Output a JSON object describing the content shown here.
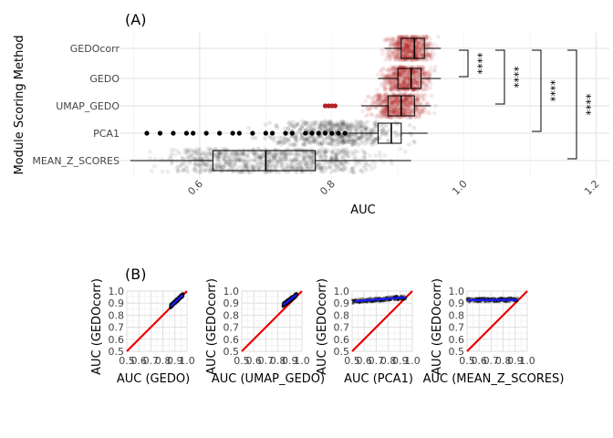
{
  "chart_data": [
    {
      "panel_label": "(A)",
      "type": "boxplot-jitter",
      "xlabel": "AUC",
      "ylabel": "Module Scoring Method",
      "xlim": [
        0.48,
        1.22
      ],
      "x_ticks": [
        0.6,
        0.8,
        1.0,
        1.2
      ],
      "x_tick_labels": [
        "0.6",
        "0.8",
        "1.0",
        "1.2"
      ],
      "categories": [
        "GEDOcorr",
        "GEDO",
        "UMAP_GEDO",
        "PCA1",
        "MEAN_Z_SCORES"
      ],
      "colors": {
        "GEDOcorr": "#b22222",
        "GEDO": "#b22222",
        "UMAP_GEDO": "#b22222",
        "PCA1": "#000000",
        "MEAN_Z_SCORES": "#000000"
      },
      "series": [
        {
          "name": "GEDOcorr",
          "min": 0.88,
          "q1": 0.905,
          "median": 0.925,
          "q3": 0.94,
          "max": 0.965,
          "spread_low": 0.87,
          "spread_high": 0.965,
          "outliers": []
        },
        {
          "name": "GEDO",
          "min": 0.87,
          "q1": 0.9,
          "median": 0.92,
          "q3": 0.935,
          "max": 0.965,
          "spread_low": 0.86,
          "spread_high": 0.965,
          "outliers": []
        },
        {
          "name": "UMAP_GEDO",
          "min": 0.845,
          "q1": 0.885,
          "median": 0.905,
          "q3": 0.925,
          "max": 0.95,
          "spread_low": 0.84,
          "spread_high": 0.96,
          "outliers": [
            0.79,
            0.795,
            0.8,
            0.805
          ]
        },
        {
          "name": "PCA1",
          "min": 0.825,
          "q1": 0.87,
          "median": 0.89,
          "q3": 0.905,
          "max": 0.945,
          "spread_low": 0.66,
          "spread_high": 0.95,
          "outliers": [
            0.52,
            0.54,
            0.56,
            0.58,
            0.59,
            0.61,
            0.63,
            0.65,
            0.66,
            0.68,
            0.7,
            0.71,
            0.73,
            0.74,
            0.76,
            0.77,
            0.78,
            0.79,
            0.8,
            0.81,
            0.82
          ]
        },
        {
          "name": "MEAN_Z_SCORES",
          "min": 0.495,
          "q1": 0.62,
          "median": 0.7,
          "q3": 0.775,
          "max": 0.92,
          "spread_low": 0.495,
          "spread_high": 0.92,
          "outliers": []
        }
      ],
      "significance": [
        {
          "compare": [
            "GEDOcorr",
            "GEDO"
          ],
          "label": "****"
        },
        {
          "compare": [
            "GEDOcorr",
            "UMAP_GEDO"
          ],
          "label": "****"
        },
        {
          "compare": [
            "GEDOcorr",
            "PCA1"
          ],
          "label": "****"
        },
        {
          "compare": [
            "GEDOcorr",
            "MEAN_Z_SCORES"
          ],
          "label": "****"
        }
      ]
    },
    {
      "panel_label": "(B)",
      "type": "scatter",
      "panels": [
        {
          "xlabel": "AUC (GEDO)",
          "ylabel": "AUC (GEDOcorr)",
          "x_range": [
            0.86,
            0.97
          ],
          "y_range": [
            0.86,
            0.97
          ],
          "fit": [
            [
              0.865,
              0.875
            ],
            [
              0.965,
              0.968
            ]
          ]
        },
        {
          "xlabel": "AUC (UMAP_GEDO)",
          "ylabel": "AUC (GEDOcorr)",
          "x_range": [
            0.84,
            0.96
          ],
          "y_range": [
            0.87,
            0.97
          ],
          "fit": [
            [
              0.845,
              0.885
            ],
            [
              0.955,
              0.97
            ]
          ]
        },
        {
          "xlabel": "AUC (PCA1)",
          "ylabel": "AUC (GEDOcorr)",
          "x_range": [
            0.5,
            0.95
          ],
          "y_range": [
            0.88,
            0.97
          ],
          "fit": [
            [
              0.52,
              0.915
            ],
            [
              0.945,
              0.948
            ]
          ]
        },
        {
          "xlabel": "AUC (MEAN_Z_SCORES)",
          "ylabel": "AUC (GEDOcorr)",
          "x_range": [
            0.5,
            0.92
          ],
          "y_range": [
            0.88,
            0.97
          ],
          "fit": [
            [
              0.5,
              0.925
            ],
            [
              0.92,
              0.928
            ]
          ]
        }
      ],
      "xlim": [
        0.5,
        1.0
      ],
      "ylim": [
        0.5,
        1.0
      ],
      "x_tick_labels": [
        "0.5",
        "0.6",
        "0.7",
        "0.8",
        "0.9",
        "1.0"
      ],
      "y_tick_labels": [
        "0.5",
        "0.6",
        "0.7",
        "0.8",
        "0.9",
        "1.0"
      ],
      "identity_line_color": "#ee0000",
      "fit_line_color": "#1a1aee",
      "point_color": "#000000"
    }
  ]
}
